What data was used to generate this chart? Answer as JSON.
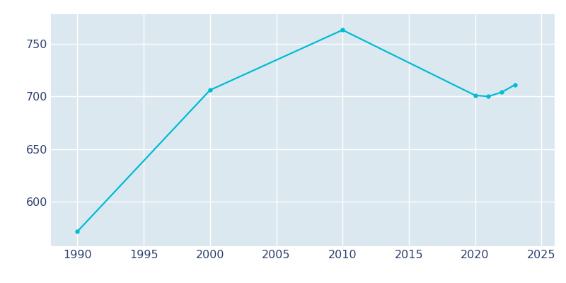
{
  "years": [
    1990,
    2000,
    2010,
    2020,
    2021,
    2022,
    2023
  ],
  "population": [
    572,
    706,
    763,
    701,
    700,
    704,
    711
  ],
  "line_color": "#00bcd4",
  "plot_bg_color": "#dce8f0",
  "fig_bg_color": "#ffffff",
  "grid_color": "#ffffff",
  "marker": "o",
  "marker_size": 3.5,
  "line_width": 1.6,
  "xlim": [
    1988,
    2026
  ],
  "ylim": [
    558,
    778
  ],
  "xticks": [
    1990,
    1995,
    2000,
    2005,
    2010,
    2015,
    2020,
    2025
  ],
  "yticks": [
    600,
    650,
    700,
    750
  ],
  "tick_label_color": "#2e3f6e",
  "tick_fontsize": 11.5
}
